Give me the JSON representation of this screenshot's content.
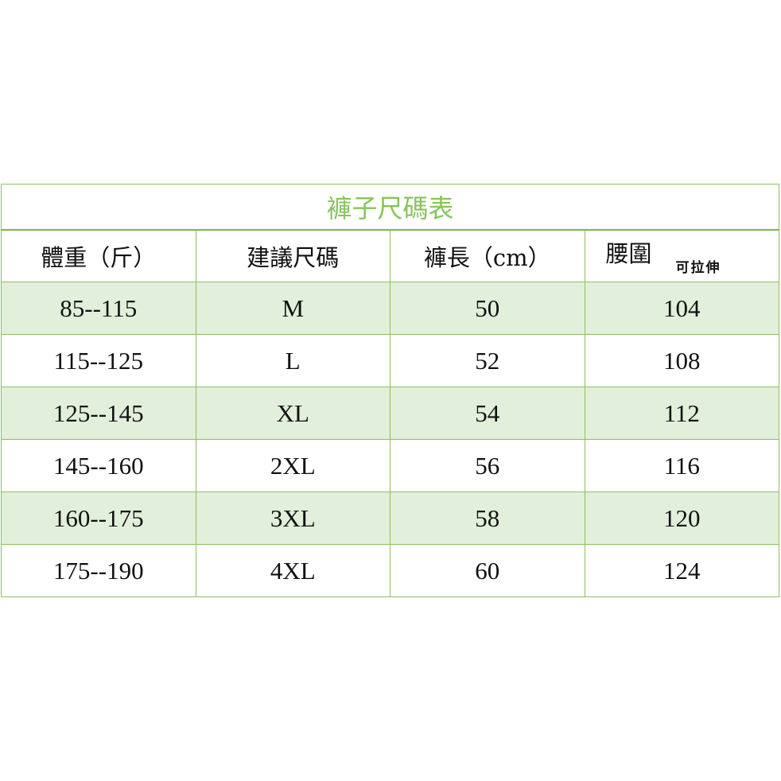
{
  "title": "褲子尺碼表",
  "headers": [
    "體重（斤）",
    "建議尺碼",
    "褲長（cm）",
    "腰圍"
  ],
  "waist_note": "可拉伸",
  "rows": [
    [
      "85--115",
      "M",
      "50",
      "104"
    ],
    [
      "115--125",
      "L",
      "52",
      "108"
    ],
    [
      "125--145",
      "XL",
      "54",
      "112"
    ],
    [
      "145--160",
      "2XL",
      "56",
      "116"
    ],
    [
      "160--175",
      "3XL",
      "58",
      "120"
    ],
    [
      "175--190",
      "4XL",
      "60",
      "124"
    ]
  ],
  "colors": {
    "border": "#8cc063",
    "title": "#86c45a",
    "shade": "#e2efda"
  }
}
